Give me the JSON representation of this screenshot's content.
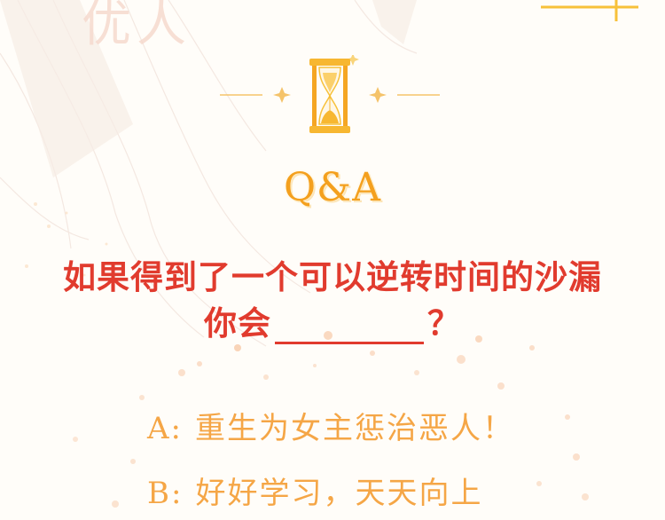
{
  "background": {
    "faded_title": "优人"
  },
  "qa": {
    "title": "Q&A"
  },
  "question": {
    "line1": "如果得到了一个可以逆转时间的沙漏",
    "line2_prefix": "你会",
    "line2_suffix": "？"
  },
  "options": [
    {
      "letter": "A:",
      "text": "重生为女主惩治恶人！"
    },
    {
      "letter": "B:",
      "text": "好好学习，天天向上"
    }
  ],
  "colors": {
    "title": "#f4a01e",
    "question": "#e13b2e",
    "options": "#f5a646",
    "hourglass": "#f7b731"
  }
}
